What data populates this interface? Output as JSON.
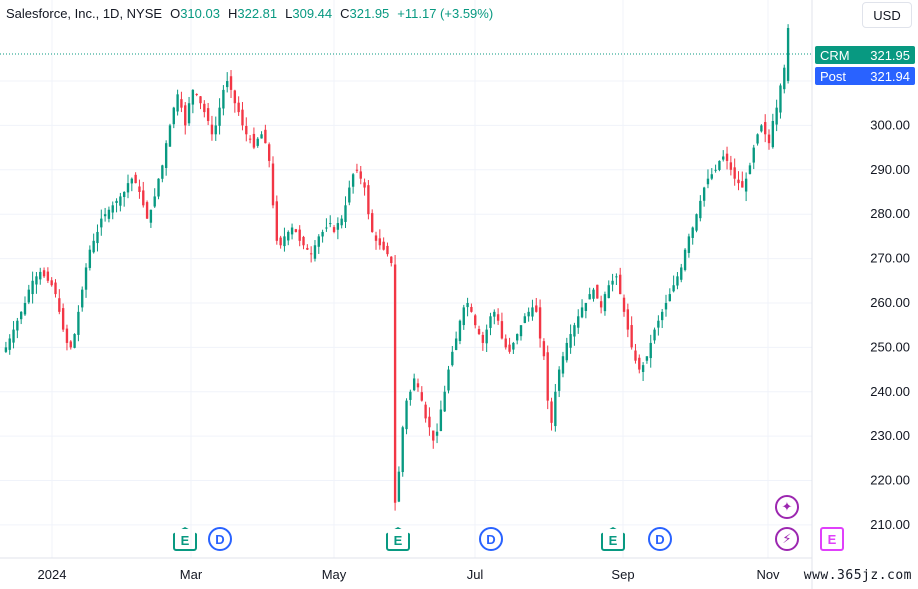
{
  "legend": {
    "symbol": "Salesforce, Inc., 1D, NYSE",
    "o_label": "O",
    "o_value": "310.03",
    "h_label": "H",
    "h_value": "322.81",
    "l_label": "L",
    "l_value": "309.44",
    "c_label": "C",
    "c_value": "321.95",
    "change": "+11.17 (+3.59%)"
  },
  "currency": "USD",
  "price_tags": {
    "crm_label": "CRM",
    "crm_value": "321.95",
    "post_label": "Post",
    "post_value": "321.94"
  },
  "watermark": "www.365jz.com",
  "colors": {
    "up": "#089981",
    "down": "#f23645",
    "grid": "#f0f3fa",
    "axis_text": "#131722"
  },
  "chart_data": {
    "type": "candlestick",
    "y_axis": {
      "min": 203,
      "max": 326,
      "ticks": [
        "310.00",
        "300.00",
        "290.00",
        "280.00",
        "270.00",
        "260.00",
        "250.00",
        "240.00",
        "230.00",
        "220.00",
        "210.00"
      ]
    },
    "x_axis": {
      "labels": [
        "2024",
        "Mar",
        "May",
        "Jul",
        "Sep",
        "Nov"
      ]
    },
    "closes": [
      250,
      252,
      254,
      256,
      258,
      260,
      263,
      265,
      266,
      267,
      266,
      265,
      264,
      262,
      258,
      254,
      251,
      250,
      253,
      258,
      263,
      268,
      272,
      274,
      276,
      279,
      280,
      281,
      282,
      283,
      284,
      285,
      287,
      288,
      287,
      285,
      282,
      279,
      281,
      284,
      288,
      291,
      296,
      300,
      304,
      307,
      304,
      300,
      305,
      308,
      307,
      305,
      303,
      301,
      298,
      300,
      304,
      308,
      310,
      308,
      305,
      303,
      300,
      298,
      297,
      295,
      297,
      298,
      296,
      292,
      282,
      274,
      273,
      275,
      276,
      277,
      276,
      274,
      273,
      272,
      271,
      273,
      275,
      276,
      277,
      278,
      276,
      278,
      279,
      282,
      286,
      289,
      290,
      288,
      286,
      280,
      276,
      274,
      273,
      272,
      271,
      269,
      215,
      222,
      232,
      238,
      240,
      243,
      241,
      238,
      234,
      232,
      229,
      231,
      236,
      240,
      245,
      249,
      252,
      256,
      259,
      260,
      258,
      255,
      253,
      251,
      254,
      257,
      258,
      256,
      252,
      250,
      249,
      251,
      253,
      255,
      257,
      258,
      259,
      258,
      252,
      248,
      238,
      233,
      240,
      245,
      248,
      251,
      253,
      255,
      257,
      259,
      260,
      262,
      263,
      261,
      259,
      262,
      264,
      265,
      266,
      262,
      258,
      254,
      250,
      247,
      245,
      246,
      248,
      251,
      254,
      256,
      258,
      260,
      262,
      264,
      266,
      268,
      272,
      275,
      277,
      280,
      283,
      286,
      288,
      289,
      290,
      292,
      293,
      292,
      290,
      288,
      287,
      286,
      288,
      291,
      295,
      298,
      300,
      298,
      296,
      301,
      304,
      309,
      313,
      321.95
    ],
    "event_markers": [
      "E",
      "D",
      "E",
      "D",
      "E",
      "D",
      "spark",
      "bolt",
      "E"
    ]
  }
}
